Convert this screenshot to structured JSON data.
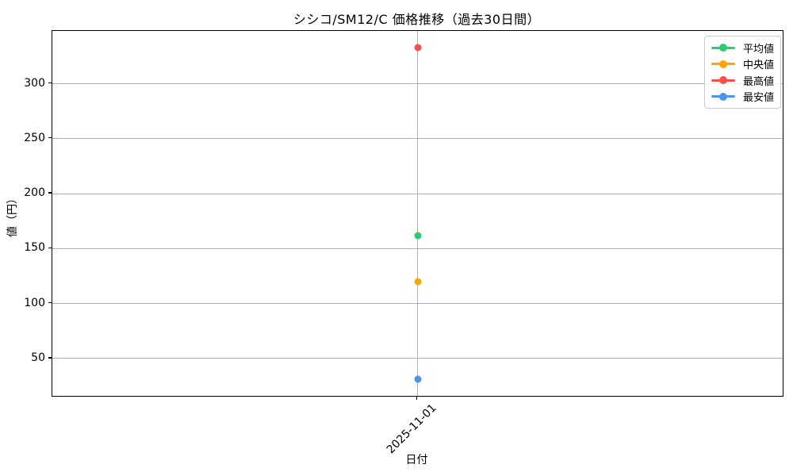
{
  "title": "シシコ/SM12/C 価格推移（過去30日間）",
  "chart_data": {
    "type": "scatter",
    "x": [
      "2025-11-01"
    ],
    "series": [
      {
        "name": "平均値",
        "color": "#2ecc71",
        "values": [
          162
        ]
      },
      {
        "name": "中央値",
        "color": "#ffa502",
        "values": [
          120
        ]
      },
      {
        "name": "最高値",
        "color": "#f35150",
        "values": [
          333
        ]
      },
      {
        "name": "最安値",
        "color": "#4d94f1",
        "values": [
          31
        ]
      }
    ],
    "xlabel": "日付",
    "ylabel": "値（円）",
    "ylim": [
      16,
      348
    ],
    "yticks": [
      50,
      100,
      150,
      200,
      250,
      300
    ],
    "grid": true,
    "legend_position": "upper right",
    "grid_color": "#b0b0b0"
  }
}
